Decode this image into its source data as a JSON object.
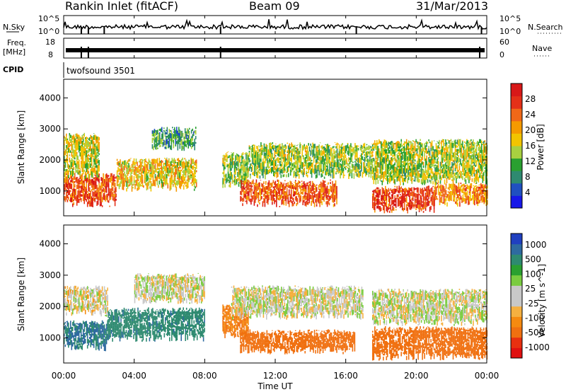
{
  "header": {
    "station": "Rankin Inlet (fitACF)",
    "beam": "Beam 09",
    "date": "31/Mar/2013"
  },
  "top_panels": {
    "nsky_label": "N.Sky",
    "nsky_ticks": [
      "10^5",
      "10^0"
    ],
    "nsearch_label": "N.Search",
    "nsearch_ticks": [
      "10^5",
      "10^0"
    ],
    "freq_label": "Freq.",
    "freq_unit": "[MHz]",
    "freq_ticks": [
      "18",
      "8"
    ],
    "nave_label": "Nave",
    "nave_ticks": [
      "60",
      "0"
    ],
    "cpid_label": "CPID",
    "cpid_value": "twofsound 3501"
  },
  "chart_data": [
    {
      "type": "heatmap",
      "panel": "power",
      "ylabel": "Slant Range [km]",
      "ylim": [
        200,
        4600
      ],
      "yticks": [
        1000,
        2000,
        3000,
        4000
      ],
      "xlim": [
        0,
        24
      ],
      "colorbar": {
        "label": "Power [dB]",
        "range": [
          0,
          32
        ],
        "ticks": [
          "4",
          "8",
          "12",
          "16",
          "20",
          "24",
          "28"
        ],
        "colors": [
          "#1818e8",
          "#2050c0",
          "#2e8a70",
          "#2aa030",
          "#a8d040",
          "#f2c400",
          "#f59a00",
          "#f06818",
          "#e43018",
          "#d81818"
        ]
      },
      "bands": [
        {
          "t0": 0.0,
          "t1": 3.0,
          "r0": 600,
          "r1": 1500,
          "level": 26
        },
        {
          "t0": 0.0,
          "t1": 2.0,
          "r0": 1500,
          "r1": 2800,
          "level": 16
        },
        {
          "t0": 3.0,
          "t1": 7.5,
          "r0": 1100,
          "r1": 2000,
          "level": 18
        },
        {
          "t0": 5.0,
          "t1": 7.5,
          "r0": 2400,
          "r1": 3000,
          "level": 10
        },
        {
          "t0": 9.0,
          "t1": 10.5,
          "r0": 1200,
          "r1": 2200,
          "level": 14
        },
        {
          "t0": 10.0,
          "t1": 15.5,
          "r0": 600,
          "r1": 1300,
          "level": 25
        },
        {
          "t0": 10.5,
          "t1": 17.5,
          "r0": 1500,
          "r1": 2500,
          "level": 14
        },
        {
          "t0": 17.5,
          "t1": 21.0,
          "r0": 400,
          "r1": 1100,
          "level": 27
        },
        {
          "t0": 17.5,
          "t1": 24.0,
          "r0": 1300,
          "r1": 2600,
          "level": 15
        },
        {
          "t0": 21.0,
          "t1": 24.0,
          "r0": 600,
          "r1": 1200,
          "level": 22
        }
      ]
    },
    {
      "type": "heatmap",
      "panel": "velocity",
      "ylabel": "Slant Range [km]",
      "ylim": [
        200,
        4600
      ],
      "yticks": [
        1000,
        2000,
        3000,
        4000
      ],
      "xlim": [
        0,
        24
      ],
      "xticks": [
        "00:00",
        "04:00",
        "08:00",
        "12:00",
        "16:00",
        "20:00",
        "00:00"
      ],
      "xlabel": "Time UT",
      "colorbar": {
        "label": "Velocity [m s^-1]",
        "ticks": [
          "1000",
          "500",
          "100",
          "25",
          "-25",
          "-100",
          "-500",
          "-1000"
        ],
        "colors": [
          "#2040c0",
          "#2e6aa0",
          "#2e8a70",
          "#2aa030",
          "#7acc40",
          "#c8c8c8",
          "#c8c8c8",
          "#f5b040",
          "#f58a10",
          "#f07010",
          "#e83010",
          "#e01010"
        ]
      },
      "bands": [
        {
          "t0": 0.0,
          "t1": 2.5,
          "r0": 1800,
          "r1": 2600,
          "level": -10
        },
        {
          "t0": 0.0,
          "t1": 2.5,
          "r0": 700,
          "r1": 1500,
          "level": 300
        },
        {
          "t0": 2.5,
          "t1": 8.0,
          "r0": 1000,
          "r1": 1900,
          "level": 250
        },
        {
          "t0": 4.0,
          "t1": 8.0,
          "r0": 2200,
          "r1": 3000,
          "level": 0
        },
        {
          "t0": 9.0,
          "t1": 10.5,
          "r0": 1100,
          "r1": 2000,
          "level": -300
        },
        {
          "t0": 9.5,
          "t1": 17.0,
          "r0": 1700,
          "r1": 2600,
          "level": 0
        },
        {
          "t0": 10.0,
          "t1": 16.5,
          "r0": 600,
          "r1": 1200,
          "level": -400
        },
        {
          "t0": 17.5,
          "t1": 24.0,
          "r0": 400,
          "r1": 1300,
          "level": -400
        },
        {
          "t0": 17.5,
          "t1": 24.0,
          "r0": 1500,
          "r1": 2500,
          "level": 0
        }
      ]
    }
  ]
}
